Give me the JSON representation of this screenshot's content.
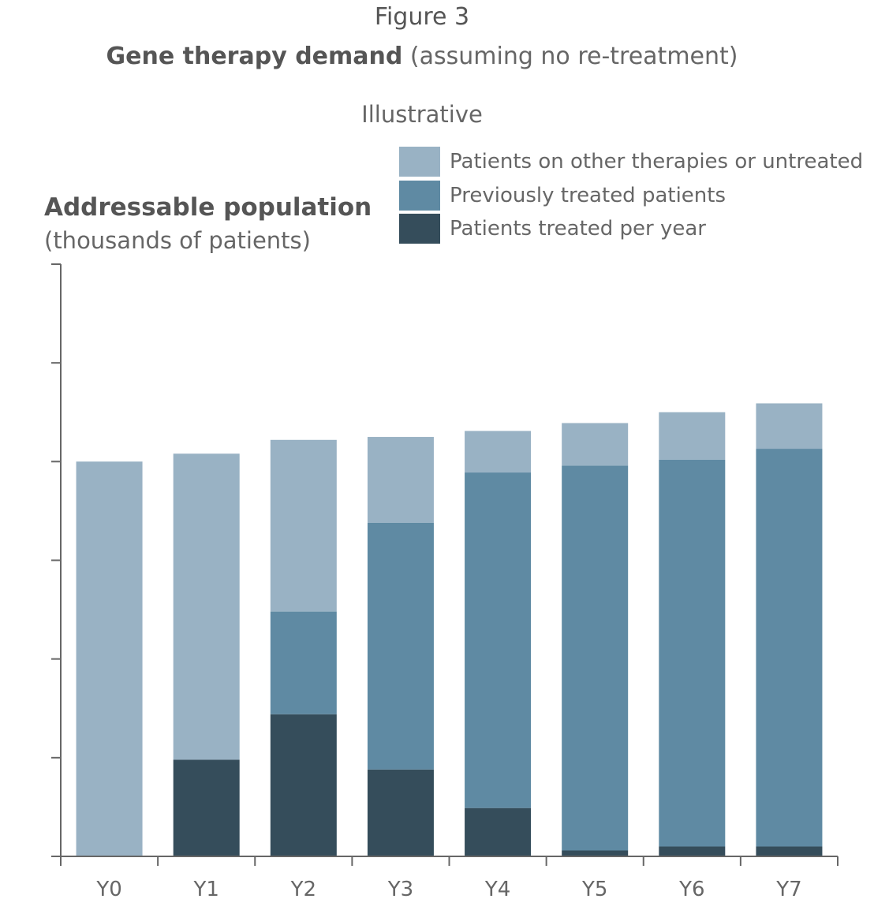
{
  "figure_label": "Figure 3",
  "title_main": "Gene therapy demand",
  "title_sub": "(assuming no re-treatment)",
  "note": "Illustrative",
  "colors": {
    "other_untreated": "#99b2c4",
    "previously_treated": "#5f8aa3",
    "treated_per_year": "#354d5b",
    "axis": "#666666"
  },
  "chart_data": {
    "type": "bar",
    "stacked": true,
    "title": "Gene therapy demand",
    "subtitle": "(assuming no re-treatment)",
    "annotation": "Illustrative",
    "ylabel": "Addressable population",
    "ylabel_unit": "(thousands of patients)",
    "xlabel": "",
    "categories": [
      "Y0",
      "Y1",
      "Y2",
      "Y3",
      "Y4",
      "Y5",
      "Y6",
      "Y7"
    ],
    "ylim": [
      0,
      6
    ],
    "y_ticks": [
      0,
      1,
      2,
      3,
      4,
      5,
      6
    ],
    "y_tick_labels_shown": false,
    "grid": false,
    "legend_position": "top-right",
    "series": [
      {
        "name": "Patients treated per year",
        "color": "#354d5b",
        "values": [
          0,
          0.98,
          1.44,
          0.88,
          0.49,
          0.06,
          0.1,
          0.1
        ]
      },
      {
        "name": "Previously treated patients",
        "color": "#5f8aa3",
        "values": [
          0,
          0,
          1.04,
          2.5,
          3.4,
          3.9,
          3.92,
          4.03
        ]
      },
      {
        "name": "Patients on other therapies or untreated",
        "color": "#99b2c4",
        "values": [
          4.0,
          3.1,
          1.74,
          0.87,
          0.42,
          0.43,
          0.48,
          0.46
        ]
      }
    ],
    "legend_order": [
      "Patients on other therapies or untreated",
      "Previously treated patients",
      "Patients treated per year"
    ]
  }
}
